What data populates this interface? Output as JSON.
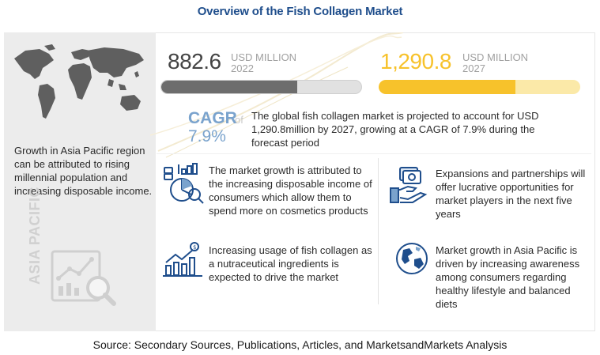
{
  "title": "Overview of the Fish Collagen Market",
  "left": {
    "map_icon": "world-map-icon",
    "growth_text": "Growth in Asia Pacific region can be attributed to rising millennial population and increasing disposable income.",
    "region_label": "ASIA PACIFIC",
    "analysis_icon": "chart-magnifier-icon"
  },
  "market_2022": {
    "value": "882.6",
    "unit": "USD MILLION",
    "year": "2022",
    "bar_fraction": 0.68
  },
  "market_2027": {
    "value": "1,290.8",
    "unit": "USD MILLION",
    "year": "2027",
    "bar_fraction": 0.68
  },
  "cagr": {
    "label": "CAGR",
    "of": "of",
    "value": "7.9%"
  },
  "summary": "The global fish collagen market is projected to account for USD 1,290.8million by 2027, growing at a CAGR of 7.9% during the forecast period",
  "points": [
    {
      "icon": "money-chart-icon",
      "text": "The market growth is attributed to the increasing disposable income of consumers which allow them to spend more on cosmetics products"
    },
    {
      "icon": "hand-money-icon",
      "text": "Expansions and partnerships will offer lucrative opportunities for market players in the next five years"
    },
    {
      "icon": "growth-bars-icon",
      "text": "Increasing usage of fish collagen as a nutraceutical ingredients is expected to drive the market"
    },
    {
      "icon": "globe-icon",
      "text": "Market growth in Asia Pacific is driven by increasing awareness among consumers regarding healthy lifestyle and balanced diets"
    }
  ],
  "source": "Source: Secondary Sources, Publications, Articles, and MarketsandMarkets Analysis",
  "colors": {
    "title": "#1f4e8c",
    "accent_yellow": "#f7c22b",
    "cagr_blue": "#7aa3cd",
    "bar_gray": "#6d6d6d"
  }
}
